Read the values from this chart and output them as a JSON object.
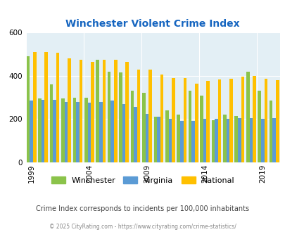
{
  "title": "Winchester Violent Crime Index",
  "subtitle": "Crime Index corresponds to incidents per 100,000 inhabitants",
  "footer": "© 2025 CityRating.com - https://www.cityrating.com/crime-statistics/",
  "years": [
    1999,
    2000,
    2001,
    2002,
    2003,
    2004,
    2005,
    2006,
    2007,
    2008,
    2009,
    2010,
    2011,
    2012,
    2013,
    2014,
    2015,
    2016,
    2017,
    2018,
    2019,
    2020
  ],
  "winchester": [
    490,
    295,
    360,
    295,
    300,
    300,
    475,
    420,
    415,
    330,
    320,
    210,
    240,
    220,
    330,
    310,
    195,
    220,
    215,
    420,
    330,
    285
  ],
  "virginia": [
    285,
    290,
    290,
    280,
    280,
    275,
    280,
    285,
    270,
    255,
    225,
    210,
    200,
    190,
    190,
    200,
    200,
    200,
    205,
    205,
    200,
    205
  ],
  "national": [
    510,
    510,
    505,
    480,
    475,
    465,
    475,
    475,
    465,
    430,
    430,
    405,
    390,
    390,
    365,
    375,
    383,
    385,
    395,
    399,
    385,
    380
  ],
  "winchester_color": "#8BC34A",
  "virginia_color": "#5B9BD5",
  "national_color": "#FFC000",
  "background_color": "#E3EFF5",
  "title_color": "#1565C0",
  "subtitle_color": "#444444",
  "footer_color": "#888888",
  "ylim": [
    0,
    600
  ],
  "yticks": [
    0,
    200,
    400,
    600
  ],
  "xtick_years": [
    1999,
    2004,
    2009,
    2014,
    2019
  ]
}
